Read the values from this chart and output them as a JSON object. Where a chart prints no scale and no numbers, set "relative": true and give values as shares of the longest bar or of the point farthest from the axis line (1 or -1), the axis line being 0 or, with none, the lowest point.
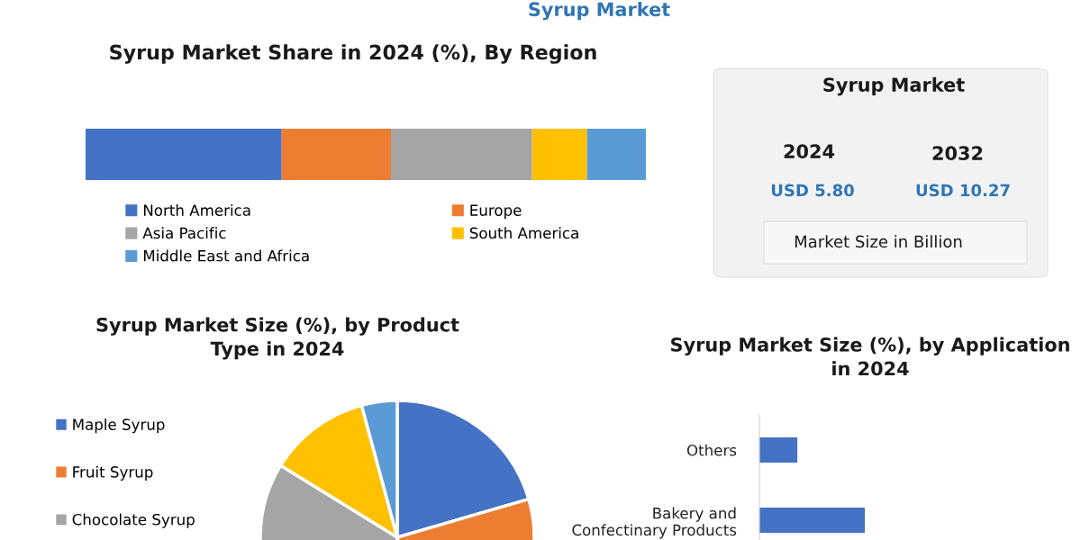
{
  "chart_data": [
    {
      "type": "other",
      "title": "Syrup Market"
    },
    {
      "type": "bar",
      "title": "Syrup Market Share in 2024 (%), By Region",
      "orientation": "horizontal",
      "stacked": true,
      "relative": true,
      "categories": [
        null
      ],
      "legend": "bottom",
      "series": [
        {
          "name": "North America",
          "color": "#4472c4",
          "values": [
            0.35
          ]
        },
        {
          "name": "Europe",
          "color": "#ed7d31",
          "values": [
            0.195
          ]
        },
        {
          "name": "Asia Pacific",
          "color": "#a5a5a5",
          "values": [
            0.252
          ]
        },
        {
          "name": "South America",
          "color": "#ffc000",
          "values": [
            0.098
          ]
        },
        {
          "name": "Middle East and Africa",
          "color": "#5b9bd5",
          "values": [
            0.105
          ]
        }
      ]
    },
    {
      "type": "other",
      "title": "Syrup Market",
      "annotations": [
        "2024",
        "USD 5.80",
        "2032",
        "USD 10.27",
        "Market Size in Billion"
      ]
    },
    {
      "type": "pie",
      "title": "Syrup Market Size (%), by Product\nType in 2024",
      "legend": "left",
      "categories": [
        "Maple Syrup",
        "Fruit Syrup",
        "Chocolate Syrup",
        null,
        null
      ],
      "values": [
        20.5,
        30,
        33.3,
        12,
        4.2
      ],
      "colors": [
        "#4472c4",
        "#ed7d31",
        "#a5a5a5",
        "#ffc000",
        "#5b9bd5"
      ]
    },
    {
      "type": "bar",
      "title": "Syrup Market Size (%), by Application\nin 2024",
      "orientation": "horizontal",
      "relative": true,
      "color": "#4472c4",
      "categories": [
        "Others",
        "Bakery and\nConfectinary Products"
      ],
      "values": [
        0.36,
        1
      ]
    }
  ]
}
